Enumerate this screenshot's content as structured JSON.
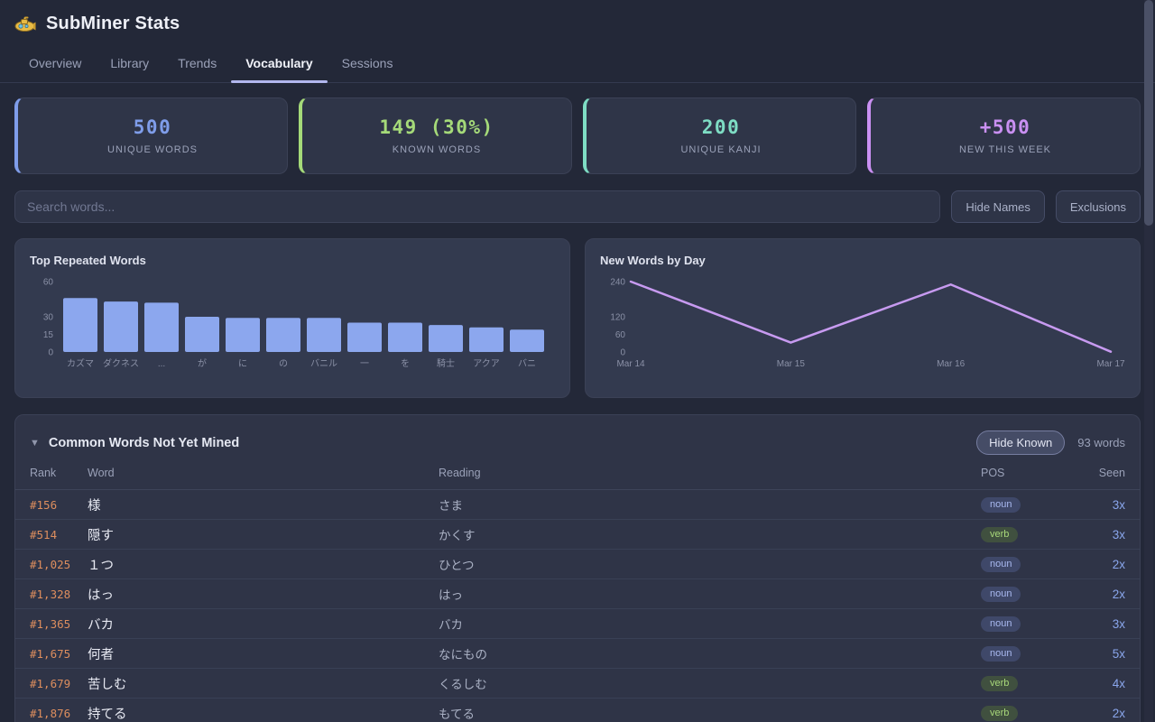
{
  "header": {
    "title": "SubMiner Stats"
  },
  "tabs": {
    "items": [
      {
        "label": "Overview",
        "active": false
      },
      {
        "label": "Library",
        "active": false
      },
      {
        "label": "Trends",
        "active": false
      },
      {
        "label": "Vocabulary",
        "active": true
      },
      {
        "label": "Sessions",
        "active": false
      }
    ]
  },
  "stat_cards": [
    {
      "value": "500",
      "label": "UNIQUE WORDS",
      "accent": "#7f9dea"
    },
    {
      "value": "149 (30%)",
      "label": "KNOWN WORDS",
      "accent": "#a5da79"
    },
    {
      "value": "200",
      "label": "UNIQUE KANJI",
      "accent": "#7eddc4"
    },
    {
      "value": "+500",
      "label": "NEW THIS WEEK",
      "accent": "#ca90f2"
    }
  ],
  "search": {
    "placeholder": "Search words...",
    "value": "",
    "hide_names_label": "Hide Names",
    "exclusions_label": "Exclusions"
  },
  "chart_data": [
    {
      "type": "bar",
      "title": "Top Repeated Words",
      "categories": [
        "カズマ",
        "ダクネス",
        "...",
        "が",
        "に",
        "の",
        "バニル",
        "一",
        "を",
        "騎士",
        "アクア",
        "バニ"
      ],
      "values": [
        46,
        43,
        42,
        30,
        29,
        29,
        29,
        25,
        25,
        23,
        21,
        19
      ],
      "yticks": [
        0,
        15,
        30,
        60
      ],
      "ylim": [
        0,
        60
      ],
      "bar_color": "#8ca7ee",
      "grid": false,
      "legend": false
    },
    {
      "type": "line",
      "title": "New Words by Day",
      "x": [
        "Mar 14",
        "Mar 15",
        "Mar 16",
        "Mar 17"
      ],
      "values": [
        240,
        32,
        230,
        1
      ],
      "yticks": [
        0,
        60,
        120,
        240
      ],
      "ylim": [
        0,
        245
      ],
      "line_color": "#c79af0",
      "grid": false,
      "legend": false
    }
  ],
  "table": {
    "collapse_icon": "▼",
    "title": "Common Words Not Yet Mined",
    "hide_known_label": "Hide Known",
    "count_label": "93 words",
    "columns": [
      "Rank",
      "Word",
      "Reading",
      "POS",
      "Seen"
    ],
    "rows": [
      {
        "rank": "#156",
        "word": "様",
        "reading": "さま",
        "pos": "noun",
        "seen": "3x"
      },
      {
        "rank": "#514",
        "word": "隠す",
        "reading": "かくす",
        "pos": "verb",
        "seen": "3x"
      },
      {
        "rank": "#1,025",
        "word": "１つ",
        "reading": "ひとつ",
        "pos": "noun",
        "seen": "2x"
      },
      {
        "rank": "#1,328",
        "word": "はっ",
        "reading": "はっ",
        "pos": "noun",
        "seen": "2x"
      },
      {
        "rank": "#1,365",
        "word": "バカ",
        "reading": "バカ",
        "pos": "noun",
        "seen": "3x"
      },
      {
        "rank": "#1,675",
        "word": "何者",
        "reading": "なにもの",
        "pos": "noun",
        "seen": "5x"
      },
      {
        "rank": "#1,679",
        "word": "苦しむ",
        "reading": "くるしむ",
        "pos": "verb",
        "seen": "4x"
      },
      {
        "rank": "#1,876",
        "word": "持てる",
        "reading": "もてる",
        "pos": "verb",
        "seen": "2x"
      }
    ],
    "pos_colors": {
      "noun": {
        "bg": "#3f4869",
        "text": "#a9b9f0"
      },
      "verb": {
        "bg": "#40503f",
        "text": "#a8d87a"
      }
    }
  },
  "colors": {
    "page_bg": "#232838",
    "card_bg": "#2f3548",
    "axis_text": "#8a90a6",
    "rank_orange": "#dd8e5e",
    "seen_blue": "#8aa6ec",
    "tab_underline": "#b2b7ee"
  }
}
